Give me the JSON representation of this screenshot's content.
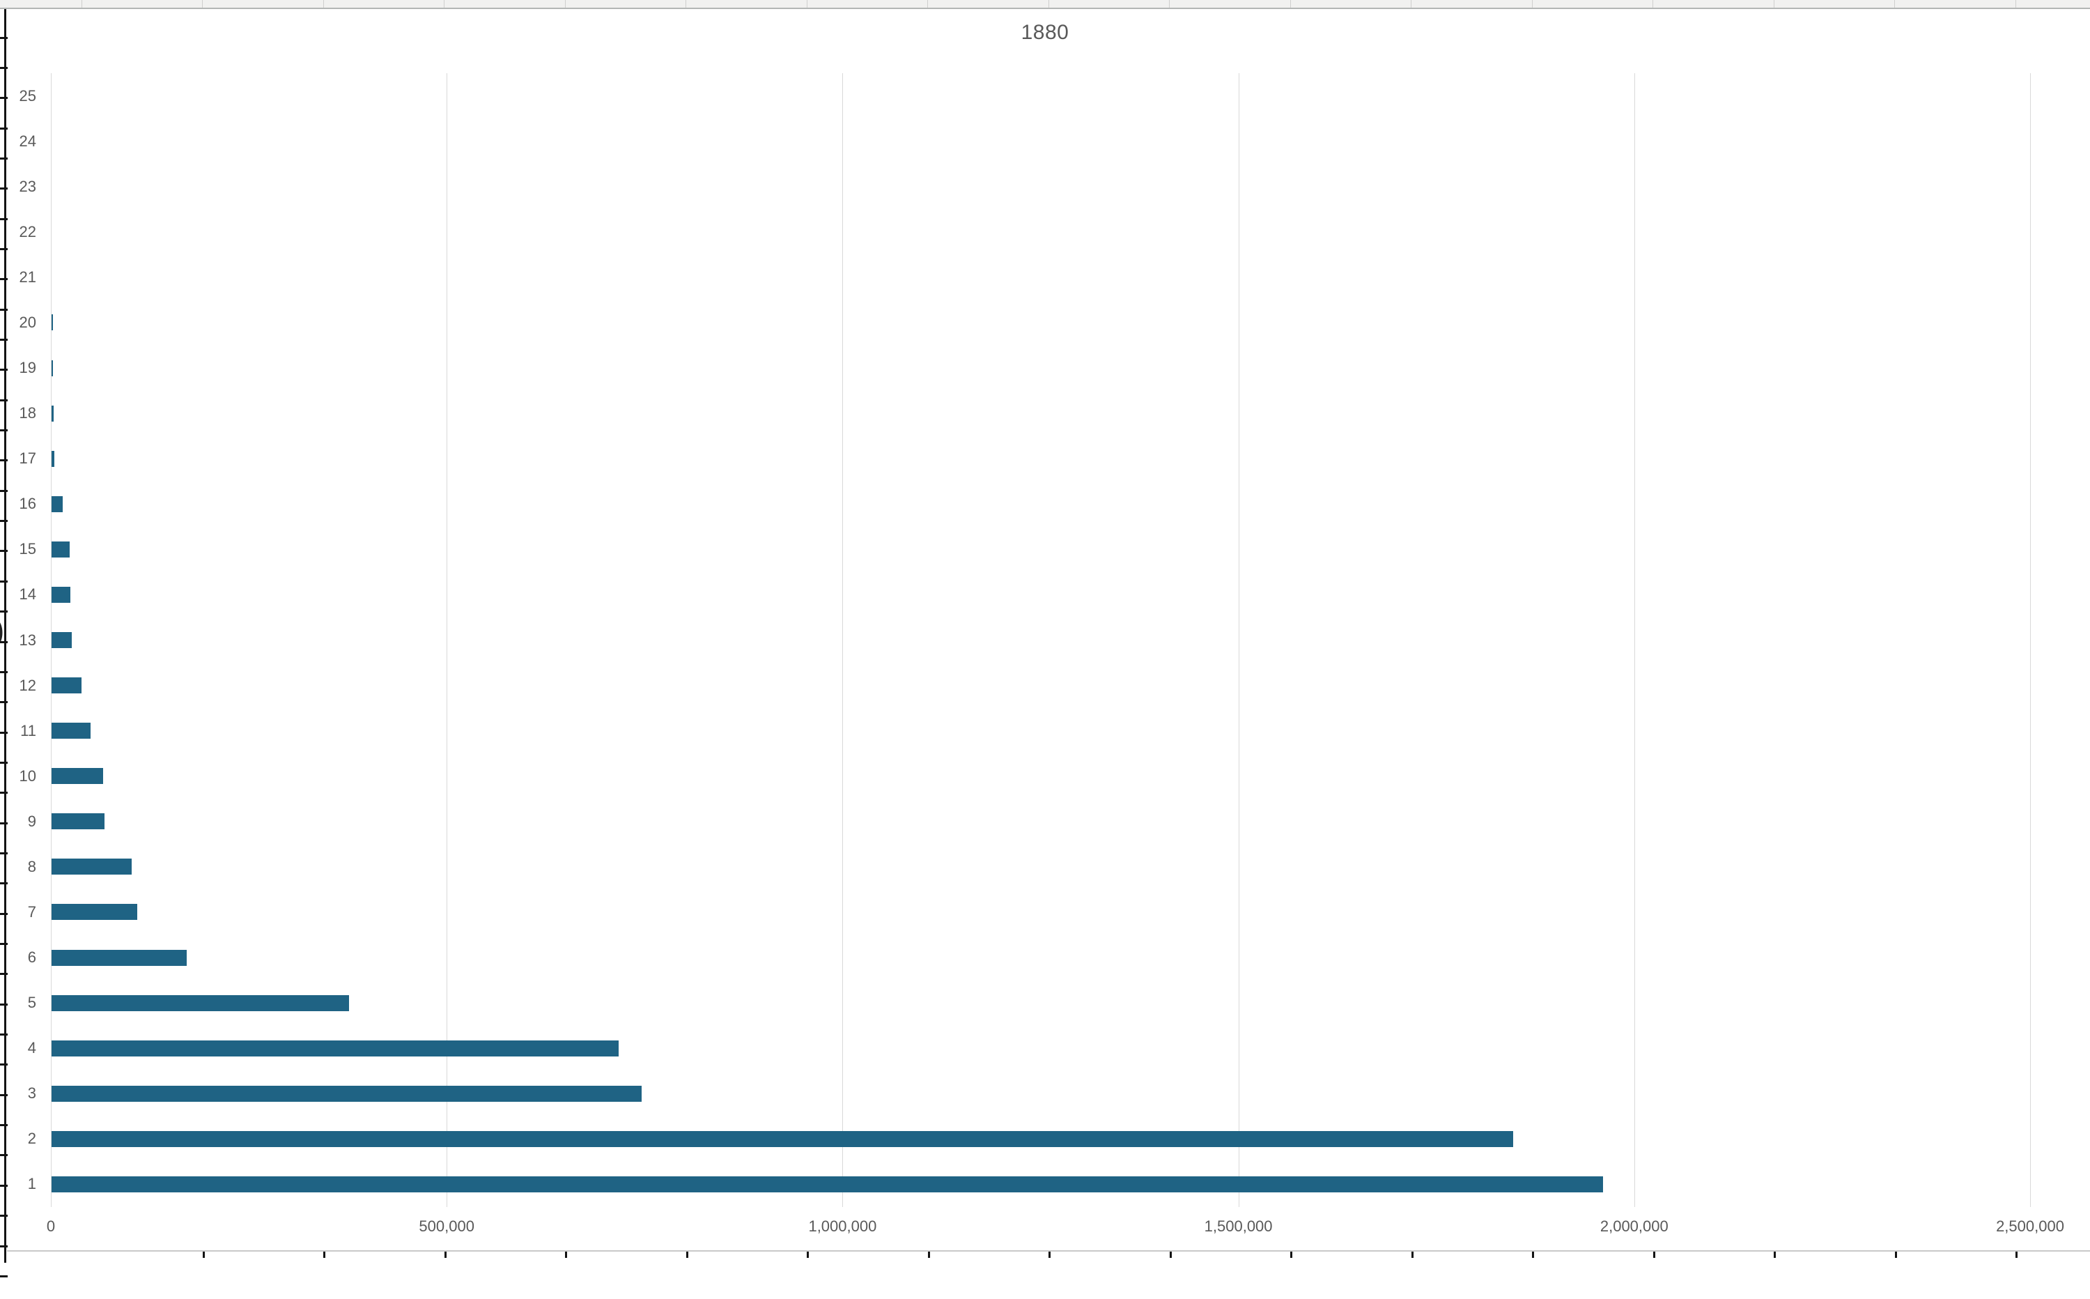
{
  "chart_data": {
    "type": "bar",
    "orientation": "horizontal",
    "title": "1880",
    "categories": [
      "1",
      "2",
      "3",
      "4",
      "5",
      "6",
      "7",
      "8",
      "9",
      "10",
      "11",
      "12",
      "13",
      "14",
      "15",
      "16",
      "17",
      "18",
      "19",
      "20",
      "21",
      "22",
      "23",
      "24",
      "25"
    ],
    "values": [
      1960000,
      1846000,
      745000,
      716000,
      376000,
      171000,
      108000,
      101000,
      67000,
      65000,
      49500,
      38000,
      25500,
      23500,
      22500,
      14000,
      3500,
      2200,
      2100,
      2000,
      0,
      0,
      0,
      0,
      0
    ],
    "xlim": [
      0,
      2500000
    ],
    "x_ticks": [
      0,
      500000,
      1000000,
      1500000,
      2000000,
      2500000
    ],
    "x_tick_labels": [
      "0",
      "500,000",
      "1,000,000",
      "1,500,000",
      "2,000,000",
      "2,500,000"
    ],
    "category_axis": "left",
    "category_order": "rank 1 at bottom, rank 25 at top",
    "grid": "vertical-only",
    "legend": "none",
    "bar_color": "#1f6384",
    "gridline_color": "#d9d9d9",
    "label_color": "#595959",
    "title_color": "#595959"
  },
  "decorations": {
    "y_axis_title_fragment": ")"
  }
}
